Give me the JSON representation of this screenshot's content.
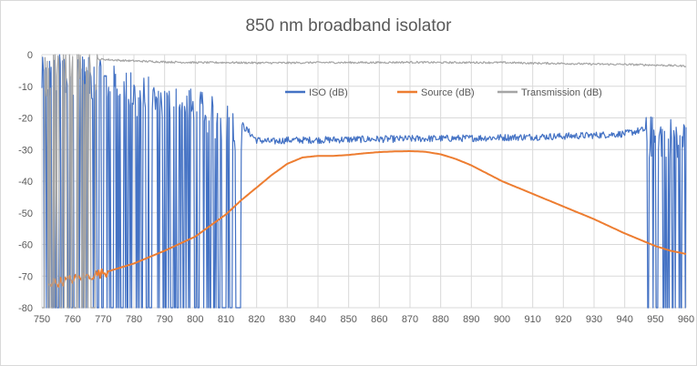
{
  "chart_data": {
    "type": "line",
    "title": "850 nm broadband isolator",
    "xlabel": "",
    "ylabel": "",
    "xlim": [
      750,
      960
    ],
    "ylim": [
      -80,
      0
    ],
    "x_ticks": [
      750,
      760,
      770,
      780,
      790,
      800,
      810,
      820,
      830,
      840,
      850,
      860,
      870,
      880,
      890,
      900,
      910,
      920,
      930,
      940,
      950,
      960
    ],
    "y_ticks": [
      0,
      -10,
      -20,
      -30,
      -40,
      -50,
      -60,
      -70,
      -80
    ],
    "grid": true,
    "legend_position": "top-center-inside",
    "series": [
      {
        "name": "ISO (dB)",
        "color": "#4472c4",
        "style": "noisy",
        "x": [
          750,
          755,
          760,
          765,
          770,
          775,
          780,
          785,
          790,
          795,
          800,
          805,
          810,
          815,
          818,
          820,
          825,
          830,
          840,
          850,
          860,
          870,
          880,
          890,
          900,
          910,
          920,
          930,
          940,
          945,
          950,
          955,
          960
        ],
        "y": [
          -5,
          -4,
          -3,
          -5,
          -6,
          -8,
          -10,
          -11,
          -13,
          -14,
          -15,
          -17,
          -19,
          -22,
          -25,
          -27,
          -27.5,
          -27,
          -27,
          -26.8,
          -26.7,
          -26.6,
          -26.5,
          -26.4,
          -26.2,
          -26,
          -25.8,
          -25.5,
          -25,
          -24,
          -23,
          -23.5,
          -24
        ],
        "dropout_ranges": [
          [
            750,
            815
          ],
          [
            947,
            960
          ]
        ]
      },
      {
        "name": "Source (dB)",
        "color": "#ed7d31",
        "style": "smooth",
        "x": [
          752,
          755,
          760,
          765,
          770,
          775,
          780,
          790,
          800,
          805,
          810,
          815,
          820,
          825,
          830,
          835,
          840,
          845,
          850,
          855,
          860,
          865,
          870,
          875,
          880,
          885,
          890,
          895,
          900,
          910,
          920,
          930,
          940,
          945,
          950,
          955,
          960
        ],
        "y": [
          -72,
          -72,
          -71,
          -70,
          -69,
          -67.5,
          -66,
          -62,
          -57.5,
          -54,
          -50.5,
          -46,
          -42,
          -38,
          -34.5,
          -32.5,
          -32,
          -32,
          -31.7,
          -31.2,
          -30.8,
          -30.6,
          -30.5,
          -30.7,
          -31.5,
          -33,
          -35,
          -37.5,
          -40,
          -44,
          -48,
          -52,
          -56.5,
          -58.5,
          -60.5,
          -62,
          -63
        ]
      },
      {
        "name": "Transmission (dB)",
        "color": "#a5a5a5",
        "style": "noisy",
        "x": [
          750,
          755,
          760,
          765,
          770,
          775,
          780,
          790,
          800,
          810,
          820,
          830,
          840,
          850,
          860,
          870,
          880,
          890,
          900,
          910,
          920,
          930,
          940,
          950,
          960
        ],
        "y": [
          -5,
          -3,
          -2,
          -1.5,
          -1.5,
          -1.8,
          -2,
          -2.3,
          -2.5,
          -2.5,
          -2.6,
          -2.6,
          -2.5,
          -2.5,
          -2.5,
          -2.4,
          -2.5,
          -2.5,
          -2.5,
          -2.7,
          -2.8,
          -3,
          -3.1,
          -3.3,
          -3.6
        ],
        "dropout_ranges": [
          [
            750,
            768
          ]
        ]
      }
    ]
  }
}
